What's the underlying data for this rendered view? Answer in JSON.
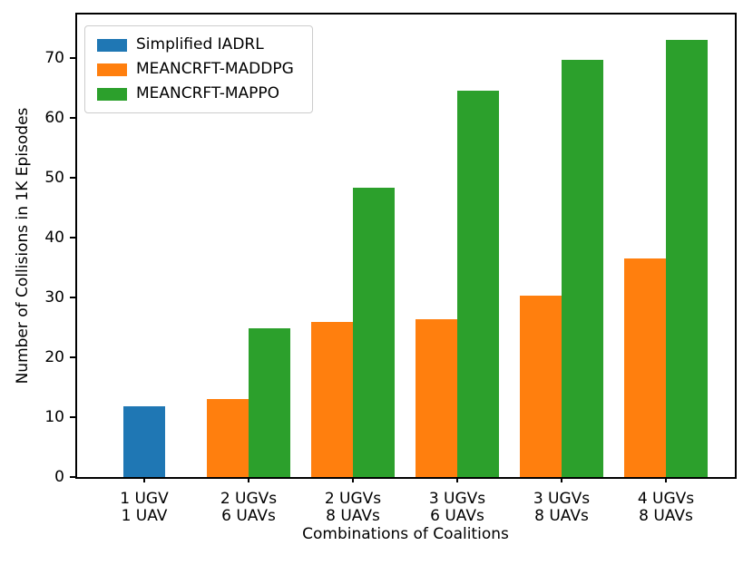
{
  "chart_data": {
    "type": "bar",
    "title": "",
    "xlabel": "Combinations of Coalitions",
    "ylabel": "Number of Collisions in 1K Episodes",
    "categories": [
      [
        "1 UGV",
        "1 UAV"
      ],
      [
        "2 UGVs",
        "6 UAVs"
      ],
      [
        "2 UGVs",
        "8 UAVs"
      ],
      [
        "3 UGVs",
        "6 UAVs"
      ],
      [
        "3 UGVs",
        "8 UAVs"
      ],
      [
        "4 UGVs",
        "8 UAVs"
      ]
    ],
    "series": [
      {
        "name": "Simplified IADRL",
        "color": "#1f77b4",
        "values": [
          11.8,
          null,
          null,
          null,
          null,
          null
        ]
      },
      {
        "name": "MEANCRFT-MADDPG",
        "color": "#ff7f0e",
        "values": [
          null,
          13.0,
          25.9,
          26.4,
          30.3,
          36.6
        ]
      },
      {
        "name": "MEANCRFT-MAPPO",
        "color": "#2ca02c",
        "values": [
          null,
          24.9,
          48.4,
          64.6,
          69.8,
          73.1
        ]
      }
    ],
    "yticks": [
      0,
      10,
      20,
      30,
      40,
      50,
      60,
      70
    ],
    "ylim": [
      0,
      77.3
    ],
    "legend_position": "upper left",
    "grid": false,
    "colors": {
      "text": "#000000",
      "spine": "#000000",
      "legend_border": "#cccccc"
    }
  }
}
